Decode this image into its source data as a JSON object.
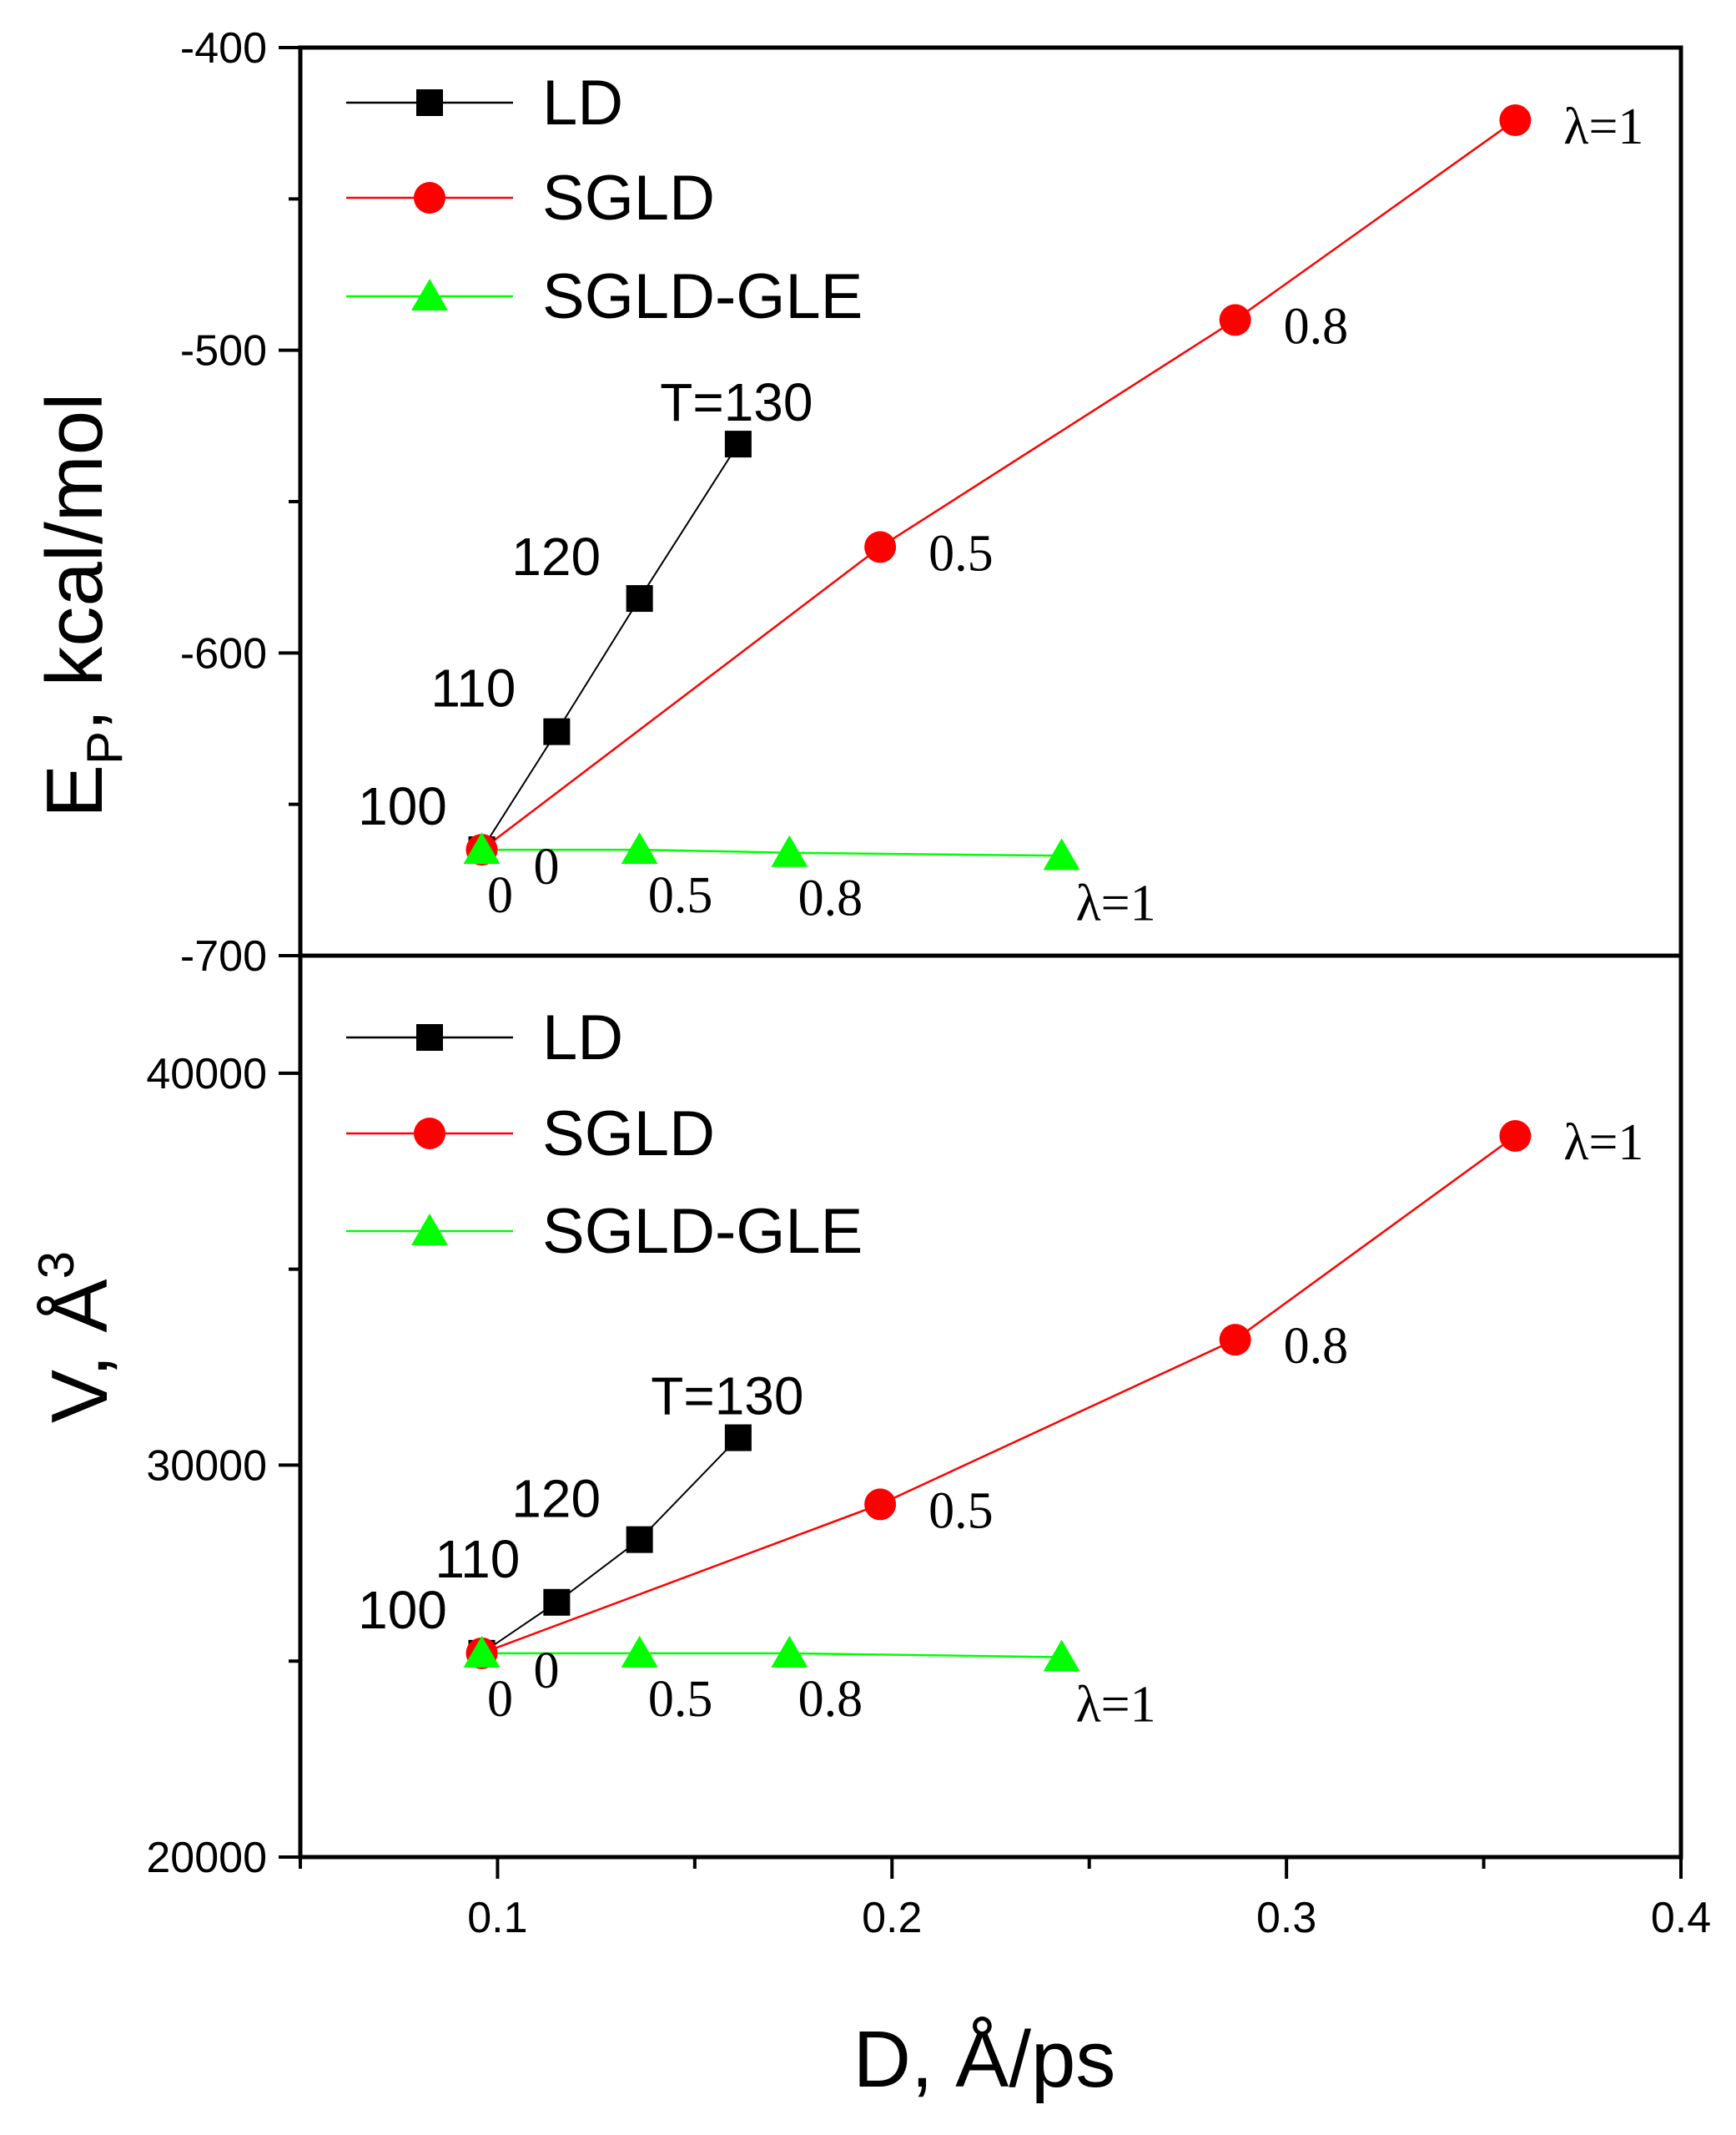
{
  "chart_data": [
    {
      "type": "line",
      "ylabel_main": "E",
      "ylabel_sub": "P",
      "ylabel_rest": ", kcal/mol",
      "ylim": [
        -700,
        -400
      ],
      "yticks": [
        -700,
        -600,
        -500,
        -400
      ],
      "ytick_labels": [
        "-700",
        "-600",
        "-500",
        "-400"
      ],
      "xlim": [
        0.05,
        0.4
      ],
      "legend": [
        {
          "label": "LD",
          "color": "#000000",
          "marker": "square"
        },
        {
          "label": "SGLD",
          "color": "#ff0000",
          "marker": "circle"
        },
        {
          "label": "SGLD-GLE",
          "color": "#00ff00",
          "marker": "triangle"
        }
      ],
      "series": [
        {
          "name": "LD",
          "x": [
            0.096,
            0.115,
            0.136,
            0.161
          ],
          "y": [
            -665,
            -626,
            -582,
            -531
          ]
        },
        {
          "name": "SGLD",
          "x": [
            0.096,
            0.197,
            0.287,
            0.358
          ],
          "y": [
            -665,
            -565,
            -490,
            -424
          ]
        },
        {
          "name": "SGLD-GLE",
          "x": [
            0.096,
            0.136,
            0.174,
            0.243
          ],
          "y": [
            -665,
            -665,
            -666,
            -667
          ]
        }
      ],
      "annotations": [
        {
          "text": "λ=1",
          "series": "SGLD",
          "point": 3
        },
        {
          "text": "0.8",
          "series": "SGLD",
          "point": 2
        },
        {
          "text": "0.5",
          "series": "SGLD",
          "point": 1
        },
        {
          "text": "0",
          "series": "SGLD",
          "point": 0
        },
        {
          "text": "T=130",
          "series": "LD",
          "point": 3
        },
        {
          "text": "120",
          "series": "LD",
          "point": 2
        },
        {
          "text": "110",
          "series": "LD",
          "point": 1
        },
        {
          "text": "100",
          "series": "LD",
          "point": 0
        },
        {
          "text": "0",
          "series": "SGLD-GLE",
          "point": 0
        },
        {
          "text": "0.5",
          "series": "SGLD-GLE",
          "point": 1
        },
        {
          "text": "0.8",
          "series": "SGLD-GLE",
          "point": 2
        },
        {
          "text": "λ=1",
          "series": "SGLD-GLE",
          "point": 3
        }
      ]
    },
    {
      "type": "line",
      "ylabel_main": "V, Å",
      "ylabel_sup": "3",
      "ylim": [
        20000,
        43000
      ],
      "yticks": [
        20000,
        30000,
        40000
      ],
      "ytick_labels": [
        "20000",
        "30000",
        "40000"
      ],
      "xlim": [
        0.05,
        0.4
      ],
      "xticks": [
        0.1,
        0.2,
        0.3,
        0.4
      ],
      "xtick_labels": [
        "0.1",
        "0.2",
        "0.3",
        "0.4"
      ],
      "xlabel": "D, Å/ps",
      "legend": [
        {
          "label": "LD",
          "color": "#000000",
          "marker": "square"
        },
        {
          "label": "SGLD",
          "color": "#ff0000",
          "marker": "circle"
        },
        {
          "label": "SGLD-GLE",
          "color": "#00ff00",
          "marker": "triangle"
        }
      ],
      "series": [
        {
          "name": "LD",
          "x": [
            0.096,
            0.115,
            0.136,
            0.161
          ],
          "y": [
            25200,
            26500,
            28100,
            30700
          ]
        },
        {
          "name": "SGLD",
          "x": [
            0.096,
            0.197,
            0.287,
            0.358
          ],
          "y": [
            25200,
            29000,
            33200,
            38400
          ]
        },
        {
          "name": "SGLD-GLE",
          "x": [
            0.096,
            0.136,
            0.174,
            0.243
          ],
          "y": [
            25200,
            25200,
            25200,
            25100
          ]
        }
      ],
      "annotations": [
        {
          "text": "λ=1",
          "series": "SGLD",
          "point": 3
        },
        {
          "text": "0.8",
          "series": "SGLD",
          "point": 2
        },
        {
          "text": "0.5",
          "series": "SGLD",
          "point": 1
        },
        {
          "text": "0",
          "series": "SGLD",
          "point": 0
        },
        {
          "text": "T=130",
          "series": "LD",
          "point": 3
        },
        {
          "text": "120",
          "series": "LD",
          "point": 2
        },
        {
          "text": "110",
          "series": "LD",
          "point": 1
        },
        {
          "text": "100",
          "series": "LD",
          "point": 0
        },
        {
          "text": "0",
          "series": "SGLD-GLE",
          "point": 0
        },
        {
          "text": "0.5",
          "series": "SGLD-GLE",
          "point": 1
        },
        {
          "text": "0.8",
          "series": "SGLD-GLE",
          "point": 2
        },
        {
          "text": "λ=1",
          "series": "SGLD-GLE",
          "point": 3
        }
      ]
    }
  ]
}
